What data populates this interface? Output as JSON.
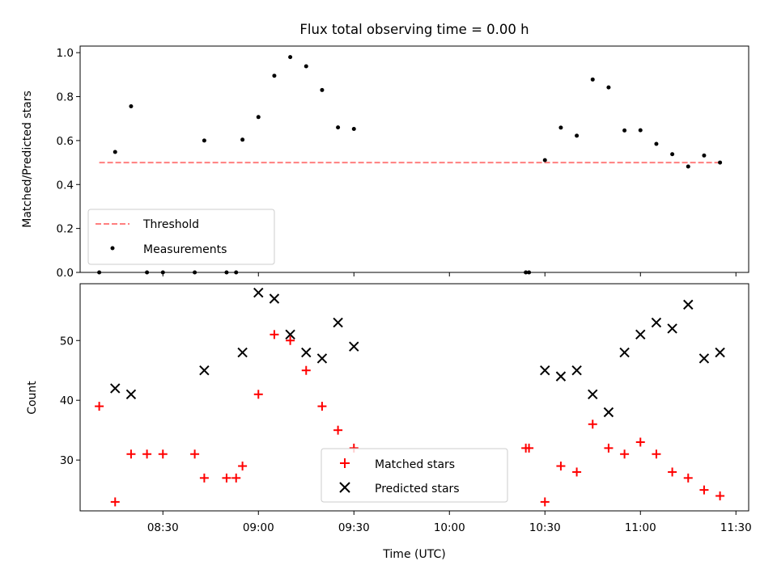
{
  "chart_data": [
    {
      "type": "scatter",
      "title": "Flux total observing time = 0.00 h",
      "xlabel": "",
      "ylabel": "Matched/Predicted stars",
      "xlim": [
        "08:04",
        "11:34"
      ],
      "ylim": [
        0,
        1.03
      ],
      "yticks": [
        0.0,
        0.2,
        0.4,
        0.6,
        0.8,
        1.0
      ],
      "ytick_labels": [
        "0.0",
        "0.2",
        "0.4",
        "0.6",
        "0.8",
        "1.0"
      ],
      "legend": {
        "location": "lower-left",
        "entries": [
          "Threshold",
          "Measurements"
        ]
      },
      "threshold": {
        "name": "Threshold",
        "value": 0.5,
        "x_start": "08:10",
        "x_end": "11:25",
        "color": "#ff7f7f",
        "style": "dashed"
      },
      "series": [
        {
          "name": "Measurements",
          "color": "#000000",
          "marker": "dot",
          "points": [
            {
              "x": "08:10",
              "y": 0.0
            },
            {
              "x": "08:15",
              "y": 0.548
            },
            {
              "x": "08:20",
              "y": 0.756
            },
            {
              "x": "08:25",
              "y": 0.0
            },
            {
              "x": "08:30",
              "y": 0.0
            },
            {
              "x": "08:40",
              "y": 0.0
            },
            {
              "x": "08:43",
              "y": 0.6
            },
            {
              "x": "08:50",
              "y": 0.0
            },
            {
              "x": "08:53",
              "y": 0.0
            },
            {
              "x": "08:55",
              "y": 0.604
            },
            {
              "x": "09:00",
              "y": 0.707
            },
            {
              "x": "09:05",
              "y": 0.895
            },
            {
              "x": "09:10",
              "y": 0.98
            },
            {
              "x": "09:15",
              "y": 0.938
            },
            {
              "x": "09:20",
              "y": 0.83
            },
            {
              "x": "09:25",
              "y": 0.66
            },
            {
              "x": "09:30",
              "y": 0.653
            },
            {
              "x": "10:24",
              "y": 0.0
            },
            {
              "x": "10:25",
              "y": 0.0
            },
            {
              "x": "10:30",
              "y": 0.511
            },
            {
              "x": "10:35",
              "y": 0.659
            },
            {
              "x": "10:40",
              "y": 0.622
            },
            {
              "x": "10:45",
              "y": 0.878
            },
            {
              "x": "10:50",
              "y": 0.842
            },
            {
              "x": "10:55",
              "y": 0.646
            },
            {
              "x": "11:00",
              "y": 0.647
            },
            {
              "x": "11:05",
              "y": 0.585
            },
            {
              "x": "11:10",
              "y": 0.538
            },
            {
              "x": "11:15",
              "y": 0.482
            },
            {
              "x": "11:20",
              "y": 0.532
            },
            {
              "x": "11:25",
              "y": 0.5
            }
          ]
        }
      ]
    },
    {
      "type": "scatter",
      "title": "",
      "xlabel": "Time (UTC)",
      "ylabel": "Count",
      "xlim": [
        "08:04",
        "11:34"
      ],
      "ylim": [
        21.5,
        59.5
      ],
      "xticks": [
        "08:30",
        "09:00",
        "09:30",
        "10:00",
        "10:30",
        "11:00",
        "11:30"
      ],
      "yticks": [
        30,
        40,
        50
      ],
      "ytick_labels": [
        "30",
        "40",
        "50"
      ],
      "legend": {
        "location": "lower-center",
        "entries": [
          "Matched stars",
          "Predicted stars"
        ]
      },
      "series": [
        {
          "name": "Matched stars",
          "color": "#ff0000",
          "marker": "plus",
          "points": [
            {
              "x": "08:10",
              "y": 39
            },
            {
              "x": "08:15",
              "y": 23
            },
            {
              "x": "08:20",
              "y": 31
            },
            {
              "x": "08:25",
              "y": 31
            },
            {
              "x": "08:30",
              "y": 31
            },
            {
              "x": "08:40",
              "y": 31
            },
            {
              "x": "08:43",
              "y": 27
            },
            {
              "x": "08:50",
              "y": 27
            },
            {
              "x": "08:53",
              "y": 27
            },
            {
              "x": "08:55",
              "y": 29
            },
            {
              "x": "09:00",
              "y": 41
            },
            {
              "x": "09:05",
              "y": 51
            },
            {
              "x": "09:10",
              "y": 50
            },
            {
              "x": "09:15",
              "y": 45
            },
            {
              "x": "09:20",
              "y": 39
            },
            {
              "x": "09:25",
              "y": 35
            },
            {
              "x": "09:30",
              "y": 32
            },
            {
              "x": "10:24",
              "y": 32
            },
            {
              "x": "10:25",
              "y": 32
            },
            {
              "x": "10:30",
              "y": 23
            },
            {
              "x": "10:35",
              "y": 29
            },
            {
              "x": "10:40",
              "y": 28
            },
            {
              "x": "10:45",
              "y": 36
            },
            {
              "x": "10:50",
              "y": 32
            },
            {
              "x": "10:55",
              "y": 31
            },
            {
              "x": "11:00",
              "y": 33
            },
            {
              "x": "11:05",
              "y": 31
            },
            {
              "x": "11:10",
              "y": 28
            },
            {
              "x": "11:15",
              "y": 27
            },
            {
              "x": "11:20",
              "y": 25
            },
            {
              "x": "11:25",
              "y": 24
            }
          ]
        },
        {
          "name": "Predicted stars",
          "color": "#000000",
          "marker": "x",
          "points": [
            {
              "x": "08:15",
              "y": 42
            },
            {
              "x": "08:20",
              "y": 41
            },
            {
              "x": "08:43",
              "y": 45
            },
            {
              "x": "08:55",
              "y": 48
            },
            {
              "x": "09:00",
              "y": 58
            },
            {
              "x": "09:05",
              "y": 57
            },
            {
              "x": "09:10",
              "y": 51
            },
            {
              "x": "09:15",
              "y": 48
            },
            {
              "x": "09:20",
              "y": 47
            },
            {
              "x": "09:25",
              "y": 53
            },
            {
              "x": "09:30",
              "y": 49
            },
            {
              "x": "10:30",
              "y": 45
            },
            {
              "x": "10:35",
              "y": 44
            },
            {
              "x": "10:40",
              "y": 45
            },
            {
              "x": "10:45",
              "y": 41
            },
            {
              "x": "10:50",
              "y": 38
            },
            {
              "x": "10:55",
              "y": 48
            },
            {
              "x": "11:00",
              "y": 51
            },
            {
              "x": "11:05",
              "y": 53
            },
            {
              "x": "11:10",
              "y": 52
            },
            {
              "x": "11:15",
              "y": 56
            },
            {
              "x": "11:20",
              "y": 47
            },
            {
              "x": "11:25",
              "y": 48
            }
          ]
        }
      ]
    }
  ]
}
